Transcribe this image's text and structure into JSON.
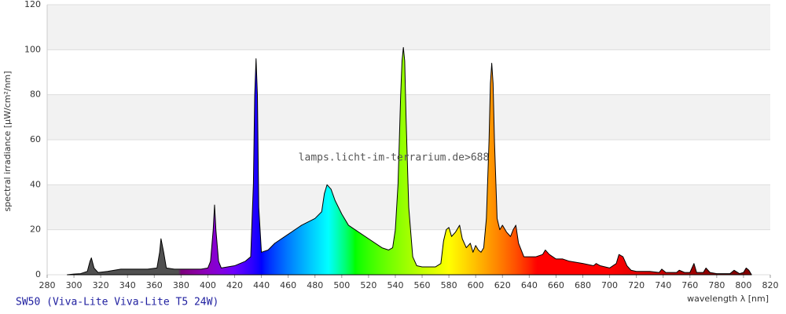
{
  "chart_data": {
    "type": "area",
    "y_label": "spectral irradiance [µW/cm²/nm]",
    "x_label": "wavelength λ [nm]",
    "subtitle": "SW50 (Viva-Lite Viva-Lite T5 24W)",
    "watermark": "lamps.licht-im-terrarium.de>688",
    "xlim": [
      280,
      820
    ],
    "xticks": [
      280,
      300,
      320,
      340,
      360,
      380,
      400,
      420,
      440,
      460,
      480,
      500,
      520,
      540,
      560,
      580,
      600,
      620,
      640,
      660,
      680,
      700,
      720,
      740,
      760,
      780,
      800,
      820
    ],
    "ylim": [
      0,
      120
    ],
    "yticks": [
      0,
      20,
      40,
      60,
      80,
      100,
      120
    ],
    "grid": true,
    "stroke": "#000000",
    "x": [
      295,
      300,
      305,
      310,
      312,
      313,
      315,
      318,
      325,
      335,
      345,
      355,
      362,
      364,
      365,
      367,
      369,
      375,
      385,
      395,
      400,
      402,
      404,
      405,
      406,
      408,
      410,
      420,
      428,
      432,
      434,
      435,
      436,
      437,
      438,
      440,
      445,
      450,
      460,
      470,
      480,
      485,
      487,
      489,
      492,
      495,
      500,
      505,
      510,
      520,
      530,
      535,
      538,
      540,
      542,
      544,
      545,
      546,
      547,
      548,
      550,
      553,
      556,
      560,
      570,
      574,
      576,
      578,
      580,
      582,
      585,
      588,
      590,
      593,
      596,
      598,
      600,
      602,
      604,
      606,
      608,
      610,
      611,
      612,
      613,
      614,
      616,
      618,
      620,
      623,
      626,
      628,
      630,
      632,
      636,
      640,
      645,
      650,
      652,
      655,
      660,
      665,
      670,
      680,
      688,
      690,
      693,
      700,
      705,
      707,
      710,
      713,
      716,
      720,
      730,
      737,
      739,
      742,
      750,
      752,
      756,
      760,
      763,
      765,
      770,
      772,
      775,
      780,
      790,
      793,
      797,
      800,
      802,
      804,
      806
    ],
    "values": [
      0,
      0.3,
      0.5,
      1.5,
      6,
      7.5,
      3,
      1,
      1.5,
      2.5,
      2.5,
      2.5,
      3,
      10,
      16,
      10,
      3,
      2.5,
      2.5,
      2.5,
      3,
      6,
      20,
      31,
      20,
      6,
      3,
      4,
      6,
      8,
      40,
      80,
      96,
      80,
      30,
      10,
      11,
      14,
      18,
      22,
      25,
      28,
      36,
      40,
      38,
      33,
      27,
      22,
      20,
      16,
      12,
      11,
      12,
      20,
      40,
      80,
      95,
      101,
      95,
      70,
      30,
      8,
      4,
      3.5,
      3.5,
      5,
      15,
      20,
      21,
      17,
      19,
      22,
      16,
      12,
      14,
      10,
      13,
      11,
      10,
      12,
      25,
      60,
      85,
      94,
      85,
      60,
      25,
      20,
      22,
      19,
      17,
      20,
      22,
      14,
      8,
      8,
      8,
      9,
      11,
      9,
      7,
      7,
      6,
      5,
      4,
      5,
      4,
      3,
      5,
      9,
      8,
      4,
      2,
      1.5,
      1.5,
      1,
      2.5,
      1,
      1,
      2,
      1,
      1,
      5,
      1,
      1,
      3,
      1,
      0.5,
      0.5,
      2,
      0.5,
      1,
      3,
      2,
      0
    ]
  }
}
